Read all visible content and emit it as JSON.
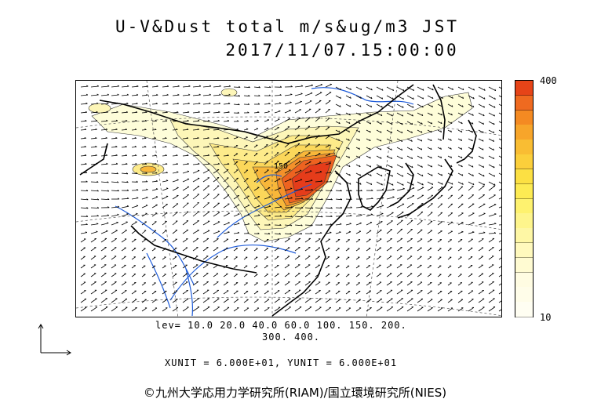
{
  "title": {
    "line1": "U-V&Dust total m/s&ug/m3 JST",
    "line2": "2017/11/07.15:00:00"
  },
  "map": {
    "contour_label": "150",
    "dust_colors": [
      "#fefdd9",
      "#fdf6b8",
      "#fdeb8a",
      "#fbd75a",
      "#f8b73a",
      "#f4912a",
      "#ee6320",
      "#e53c1a"
    ]
  },
  "contour_levels": {
    "line1": "lev= 10.0 20.0 40.0 60.0 100. 150. 200.",
    "line2": "300. 400."
  },
  "colorbar": {
    "max_label": "400",
    "min_label": "10",
    "colors": [
      "#e64418",
      "#ef6a20",
      "#f48a22",
      "#f7a52a",
      "#f9bd33",
      "#fbcf3b",
      "#fce043",
      "#fdeb53",
      "#fef26f",
      "#fef58c",
      "#fef7a5",
      "#fff9bd",
      "#fffbd2",
      "#fffce2",
      "#fffde9",
      "#fffef2"
    ]
  },
  "units": "XUNIT = 6.000E+01, YUNIT = 6.000E+01",
  "credit": "©九州大学応用力学研究所(RIAM)/国立環境研究所(NIES)"
}
